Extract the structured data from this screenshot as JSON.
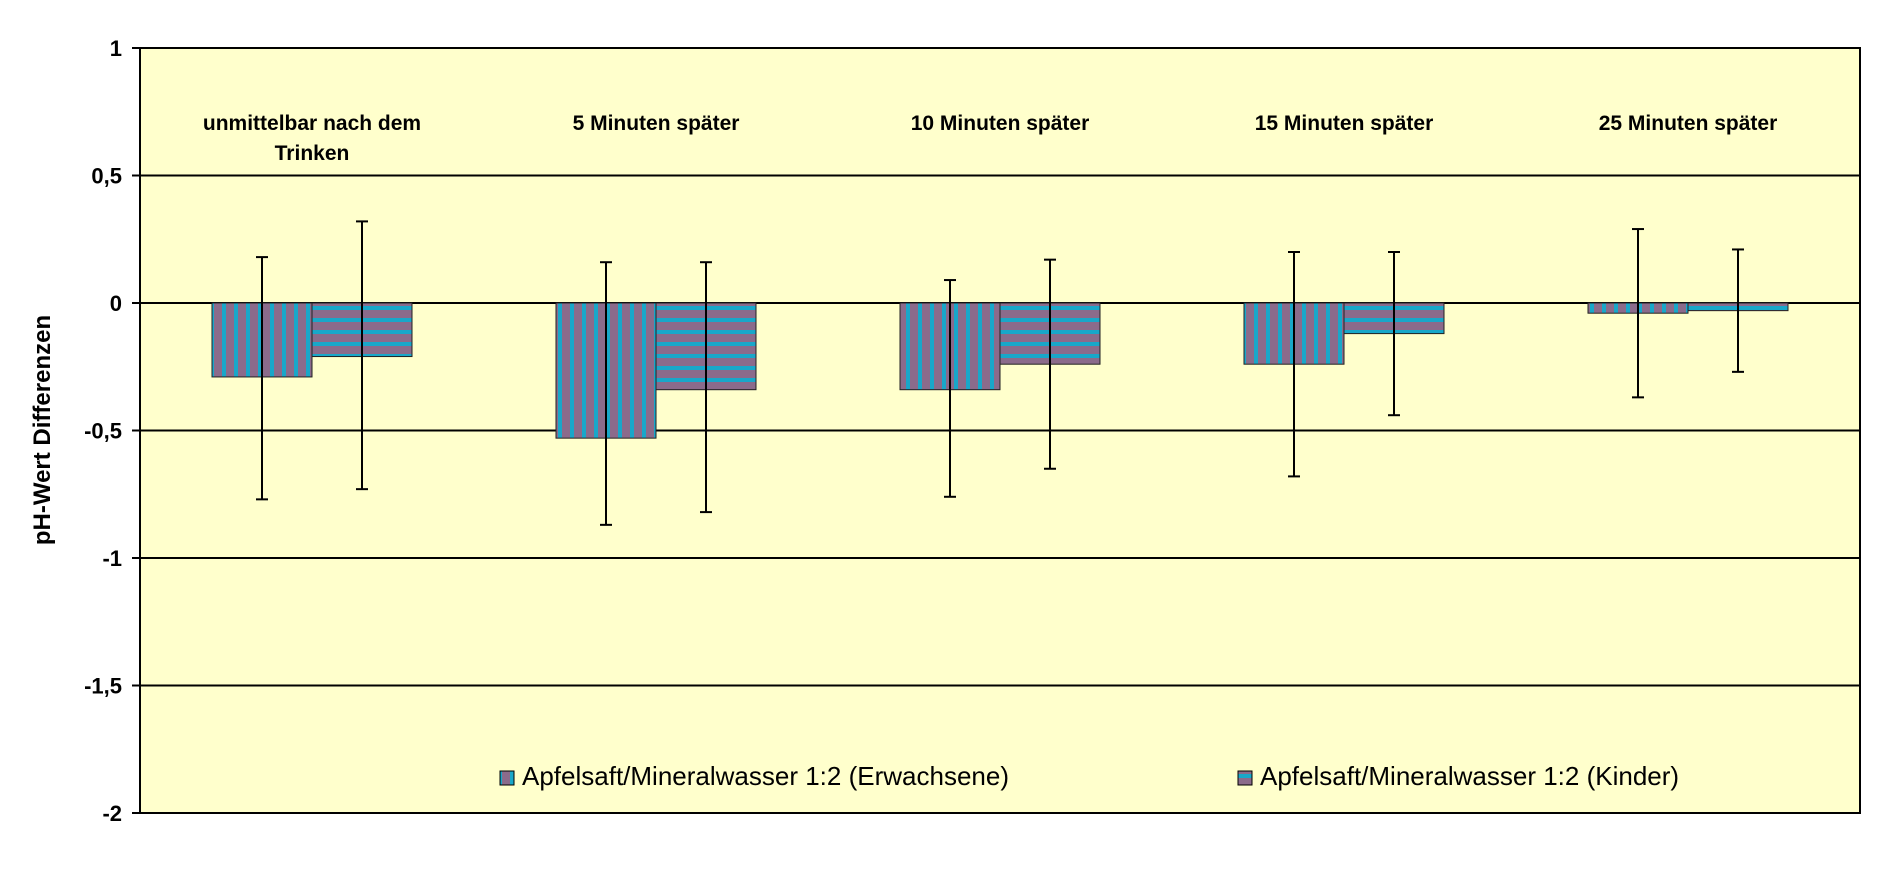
{
  "chart_data": {
    "type": "bar",
    "xlabel": "",
    "ylabel": "pH-Wert Differenzen",
    "ylim": [
      -2,
      1
    ],
    "yticks": [
      1,
      0.5,
      0,
      -0.5,
      -1,
      -1.5,
      -2
    ],
    "ytick_labels": [
      "1",
      "0,5",
      "0",
      "-0,5",
      "-1",
      "-1,5",
      "-2"
    ],
    "grid": true,
    "legend_position": "bottom-right",
    "background_color": "#FFFFCC",
    "categories": [
      "unmittelbar nach dem Trinken",
      "5 Minuten später",
      "10 Minuten später",
      "15 Minuten später",
      "25 Minuten später"
    ],
    "series": [
      {
        "name": "Apfelsaft/Mineralwasser 1:2 (Erwachsene)",
        "pattern": "vertical-stripes",
        "colors": [
          "#8B6B8B",
          "#19A7C9"
        ],
        "values": [
          -0.29,
          -0.53,
          -0.34,
          -0.24,
          -0.04
        ],
        "error_upper": [
          0.18,
          0.16,
          0.09,
          0.2,
          0.29
        ],
        "error_lower": [
          -0.77,
          -0.87,
          -0.76,
          -0.68,
          -0.37
        ]
      },
      {
        "name": "Apfelsaft/Mineralwasser 1:2 (Kinder)",
        "pattern": "horizontal-stripes",
        "colors": [
          "#8B6B8B",
          "#19A7C9"
        ],
        "values": [
          -0.21,
          -0.34,
          -0.24,
          -0.12,
          -0.03
        ],
        "error_upper": [
          0.32,
          0.16,
          0.17,
          0.2,
          0.21
        ],
        "error_lower": [
          -0.73,
          -0.82,
          -0.65,
          -0.44,
          -0.27
        ]
      }
    ]
  }
}
